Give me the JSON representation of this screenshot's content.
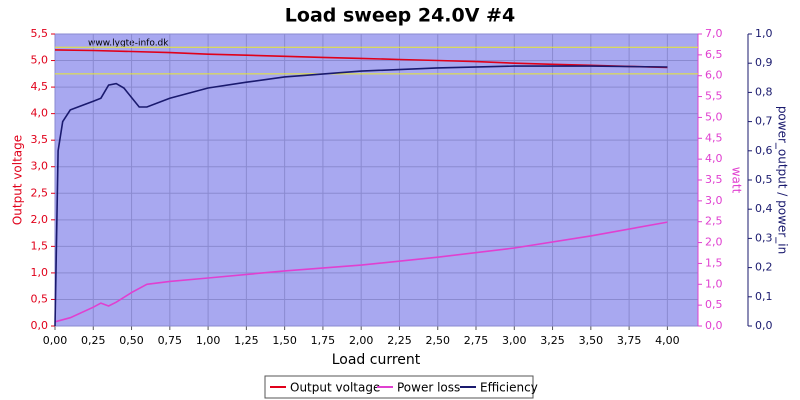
{
  "chart_data": {
    "type": "line",
    "title": "Load sweep 24.0V #4",
    "watermark": "www.lygte-info.dk",
    "xlabel": "Load current",
    "ylabel": "Output voltage",
    "y2label": "watt",
    "y3label": "power_output / power_in",
    "xlim": [
      0,
      4.2
    ],
    "ylim": [
      0,
      5.5
    ],
    "y2lim": [
      0,
      7.0
    ],
    "y3lim": [
      0,
      1.0
    ],
    "grid": true,
    "xticks": [
      {
        "value": 0,
        "label": "0,00"
      },
      {
        "value": 0.25,
        "label": "0,25"
      },
      {
        "value": 0.5,
        "label": "0,50"
      },
      {
        "value": 0.75,
        "label": "0,75"
      },
      {
        "value": 1,
        "label": "1,00"
      },
      {
        "value": 1.25,
        "label": "1,25"
      },
      {
        "value": 1.5,
        "label": "1,50"
      },
      {
        "value": 1.75,
        "label": "1,75"
      },
      {
        "value": 2,
        "label": "2,00"
      },
      {
        "value": 2.25,
        "label": "2,25"
      },
      {
        "value": 2.5,
        "label": "2,50"
      },
      {
        "value": 2.75,
        "label": "2,75"
      },
      {
        "value": 3,
        "label": "3,00"
      },
      {
        "value": 3.25,
        "label": "3,25"
      },
      {
        "value": 3.5,
        "label": "3,50"
      },
      {
        "value": 3.75,
        "label": "3,75"
      },
      {
        "value": 4,
        "label": "4,00"
      }
    ],
    "yticks": [
      {
        "value": 0,
        "label": "0,0"
      },
      {
        "value": 0.5,
        "label": "0,5"
      },
      {
        "value": 1,
        "label": "1,0"
      },
      {
        "value": 1.5,
        "label": "1,5"
      },
      {
        "value": 2,
        "label": "2,0"
      },
      {
        "value": 2.5,
        "label": "2,5"
      },
      {
        "value": 3,
        "label": "3,0"
      },
      {
        "value": 3.5,
        "label": "3,5"
      },
      {
        "value": 4,
        "label": "4,0"
      },
      {
        "value": 4.5,
        "label": "4,5"
      },
      {
        "value": 5,
        "label": "5,0"
      },
      {
        "value": 5.5,
        "label": "5,5"
      }
    ],
    "y2ticks": [
      {
        "value": 0,
        "label": "0,0"
      },
      {
        "value": 0.5,
        "label": "0,5"
      },
      {
        "value": 1,
        "label": "1,0"
      },
      {
        "value": 1.5,
        "label": "1,5"
      },
      {
        "value": 2,
        "label": "2,0"
      },
      {
        "value": 2.5,
        "label": "2,5"
      },
      {
        "value": 3,
        "label": "3,0"
      },
      {
        "value": 3.5,
        "label": "3,5"
      },
      {
        "value": 4,
        "label": "4,0"
      },
      {
        "value": 4.5,
        "label": "4,5"
      },
      {
        "value": 5,
        "label": "5,0"
      },
      {
        "value": 5.5,
        "label": "5,5"
      },
      {
        "value": 6,
        "label": "6,0"
      },
      {
        "value": 6.5,
        "label": "6,5"
      },
      {
        "value": 7,
        "label": "7,0"
      }
    ],
    "y3ticks": [
      {
        "value": 0,
        "label": "0,0"
      },
      {
        "value": 0.1,
        "label": "0,1"
      },
      {
        "value": 0.2,
        "label": "0,2"
      },
      {
        "value": 0.3,
        "label": "0,3"
      },
      {
        "value": 0.4,
        "label": "0,4"
      },
      {
        "value": 0.5,
        "label": "0,5"
      },
      {
        "value": 0.6,
        "label": "0,6"
      },
      {
        "value": 0.7,
        "label": "0,7"
      },
      {
        "value": 0.8,
        "label": "0,8"
      },
      {
        "value": 0.9,
        "label": "0,9"
      },
      {
        "value": 1,
        "label": "1,0"
      }
    ],
    "hlines": [
      5.25,
      4.75
    ],
    "hline_color": "#e8e830",
    "series": [
      {
        "name": "Output voltage",
        "color": "#e0001a",
        "x": [
          0,
          0.25,
          0.5,
          0.75,
          1,
          1.25,
          1.5,
          1.75,
          2,
          2.25,
          2.5,
          2.75,
          3,
          3.25,
          3.5,
          3.75,
          4
        ],
        "values": [
          5.2,
          5.19,
          5.17,
          5.15,
          5.12,
          5.1,
          5.08,
          5.06,
          5.04,
          5.02,
          5.0,
          4.98,
          4.95,
          4.93,
          4.91,
          4.89,
          4.87
        ]
      },
      {
        "name": "Power loss",
        "color": "#e040d0",
        "axis": "y2",
        "x": [
          0,
          0.1,
          0.25,
          0.3,
          0.35,
          0.4,
          0.5,
          0.6,
          0.75,
          1,
          1.5,
          2,
          2.5,
          3,
          3.5,
          4
        ],
        "values": [
          0.1,
          0.2,
          0.45,
          0.55,
          0.48,
          0.57,
          0.8,
          1.0,
          1.07,
          1.15,
          1.32,
          1.46,
          1.65,
          1.87,
          2.16,
          2.49
        ]
      },
      {
        "name": "Efficiency",
        "color": "#1a1a6e",
        "axis": "y3",
        "x": [
          0,
          0.02,
          0.05,
          0.1,
          0.2,
          0.25,
          0.3,
          0.35,
          0.4,
          0.45,
          0.55,
          0.6,
          0.75,
          1,
          1.25,
          1.5,
          2,
          2.5,
          3,
          3.5,
          4
        ],
        "values": [
          0,
          0.6,
          0.7,
          0.74,
          0.76,
          0.77,
          0.78,
          0.825,
          0.83,
          0.815,
          0.75,
          0.75,
          0.78,
          0.815,
          0.835,
          0.853,
          0.873,
          0.884,
          0.89,
          0.89,
          0.887
        ]
      }
    ]
  }
}
